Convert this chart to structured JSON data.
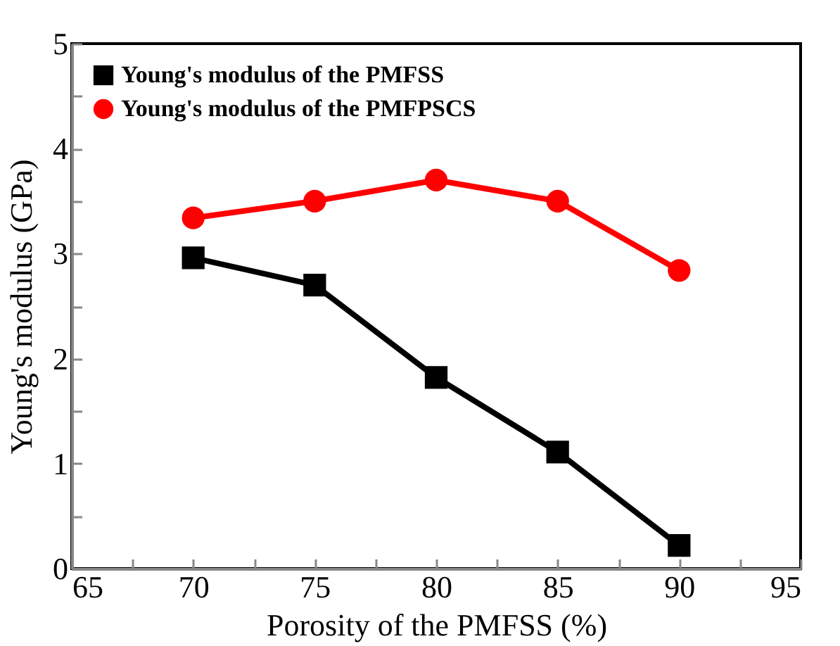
{
  "chart_data": {
    "type": "line",
    "xlabel": "Porosity of the PMFSS (%)",
    "ylabel": "Young's modulus (GPa)",
    "x": [
      70,
      75,
      80,
      85,
      90
    ],
    "series": [
      {
        "name": "Young's modulus of the PMFSS",
        "color": "#000000",
        "marker": "square",
        "values": [
          2.96,
          2.7,
          1.82,
          1.11,
          0.22
        ]
      },
      {
        "name": "Young's modulus of the PMFPSCS",
        "color": "#ff0000",
        "marker": "circle",
        "values": [
          3.34,
          3.5,
          3.7,
          3.5,
          2.84
        ]
      }
    ],
    "xlim": [
      65,
      95
    ],
    "xticks": [
      65,
      {
        "value": 67.5,
        "label": null
      },
      70,
      {
        "value": 72.5,
        "label": null
      },
      75,
      {
        "value": 77.5,
        "label": null
      },
      80,
      {
        "value": 82.5,
        "label": null
      },
      85,
      {
        "value": 87.5,
        "label": null
      },
      90,
      {
        "value": 92.5,
        "label": null
      },
      95
    ],
    "ylim": [
      0,
      5
    ],
    "yticks": [
      0,
      {
        "value": 0.5,
        "label": null
      },
      1,
      {
        "value": 1.5,
        "label": null
      },
      2,
      {
        "value": 2.5,
        "label": null
      },
      3,
      {
        "value": 3.5,
        "label": null
      },
      4,
      {
        "value": 4.5,
        "label": null
      },
      5
    ],
    "grid": false,
    "legend": "top left",
    "line_style": "solid"
  }
}
